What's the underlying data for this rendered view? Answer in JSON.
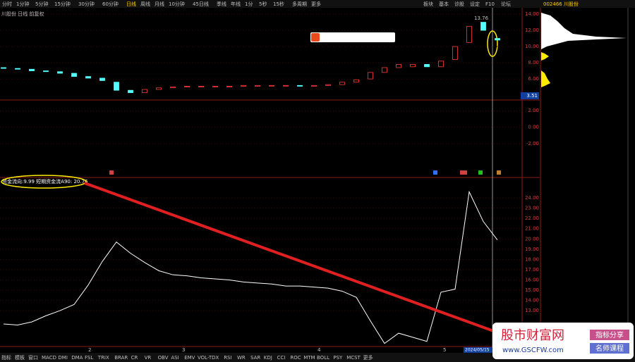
{
  "toolbar": {
    "tabs": [
      "分时",
      "1分钟",
      "5分钟",
      "15分钟",
      "30分钟",
      "60分钟",
      "日线",
      "周线",
      "月线",
      "10分钟",
      "45日线",
      "季线",
      "年线",
      "1分",
      "5秒",
      "15秒",
      "多周期",
      "更多"
    ],
    "right_tabs": [
      "板块",
      "基本",
      "诊股",
      "设定",
      "F10",
      "论坛"
    ]
  },
  "quote_header": "002466 川股份",
  "price_panel": {
    "title": "川股份 日线 前复权",
    "ylim": [
      3.4,
      14.7
    ],
    "yticks": [
      {
        "value": 14,
        "label": "14.00"
      },
      {
        "value": 12,
        "label": "12.00"
      },
      {
        "value": 10,
        "label": "10.00"
      },
      {
        "value": 8,
        "label": "8.00"
      },
      {
        "value": 6,
        "label": "6.00"
      }
    ],
    "open": [
      7.4,
      7.3,
      7.2,
      7.0,
      6.9,
      6.7,
      6.3,
      6.1,
      5.6,
      4.6,
      4.3,
      4.7,
      4.9,
      5.0,
      5.0,
      5.1,
      5.0,
      5.1,
      5.1,
      5.2,
      5.2,
      5.2,
      5.1,
      5.2,
      5.3,
      5.6,
      6.0,
      6.8,
      7.4,
      7.5,
      7.8,
      7.5,
      8.4,
      10.5,
      13.0,
      11.0
    ],
    "close": [
      7.3,
      7.2,
      7.0,
      6.9,
      6.7,
      6.3,
      6.1,
      5.8,
      4.6,
      4.3,
      4.7,
      4.9,
      5.0,
      5.1,
      5.1,
      5.1,
      5.1,
      5.2,
      5.2,
      5.2,
      5.2,
      5.1,
      5.2,
      5.3,
      5.6,
      5.9,
      6.8,
      7.4,
      7.8,
      7.8,
      7.5,
      8.2,
      10.0,
      12.5,
      12.0,
      10.8
    ],
    "up_color": "#ff3c3c",
    "down_color": "#54ffff",
    "high_label": "13.76",
    "price_label": "3.51"
  },
  "sub_panel": {
    "ylim": [
      -6.1,
      3.3
    ],
    "yticks": [
      {
        "value": 2,
        "label": "2.00"
      },
      {
        "value": 0,
        "label": "0.00"
      },
      {
        "value": -2,
        "label": "-2.00"
      }
    ]
  },
  "indicator_panel": {
    "legend": "资金流向:9.99 短期资金流A90: 20.76",
    "ylim": [
      9.5,
      26
    ],
    "yticks": [
      {
        "value": 24,
        "label": "24.00"
      },
      {
        "value": 23,
        "label": "23.00"
      },
      {
        "value": 22,
        "label": "22.00"
      },
      {
        "value": 21,
        "label": "21.00"
      },
      {
        "value": 20,
        "label": "20.00"
      },
      {
        "value": 19,
        "label": "19.00"
      },
      {
        "value": 18,
        "label": "18.00"
      },
      {
        "value": 17,
        "label": "17.00"
      },
      {
        "value": 16,
        "label": "16.00"
      },
      {
        "value": 15,
        "label": "15.00"
      },
      {
        "value": 14,
        "label": "14.00"
      },
      {
        "value": 13,
        "label": "13.00"
      }
    ],
    "values": [
      11.7,
      11.6,
      11.9,
      12.5,
      13.0,
      13.6,
      15.5,
      17.8,
      19.7,
      18.6,
      17.7,
      16.9,
      16.5,
      16.4,
      16.2,
      16.1,
      16.0,
      15.8,
      15.7,
      15.6,
      15.4,
      15.4,
      15.3,
      15.2,
      14.9,
      14.3,
      12.0,
      9.8,
      10.8,
      10.4,
      10.0,
      14.8,
      15.1,
      24.6,
      21.7,
      19.9
    ],
    "color": "#ffffff",
    "month_labels": [
      "2",
      "3",
      "4",
      "5"
    ],
    "cursor_date": "2024/05/15"
  },
  "bottom_tabs": [
    "指标",
    "模板",
    "窗口",
    "MACD",
    "DMI",
    "DMA",
    "FSL",
    "TRIX",
    "BRAR",
    "CR",
    "VR",
    "OBV",
    "ASI",
    "EMV",
    "VOL-TDX",
    "RSI",
    "WR",
    "SAR",
    "KDJ",
    "CCI",
    "ROC",
    "MTM",
    "BOLL",
    "PSY",
    "MCST",
    "更多"
  ],
  "watermark": {
    "title": "股市财富网",
    "url": "www.GSCFW.com",
    "buttons": [
      "指标分享",
      "名师课程"
    ]
  }
}
